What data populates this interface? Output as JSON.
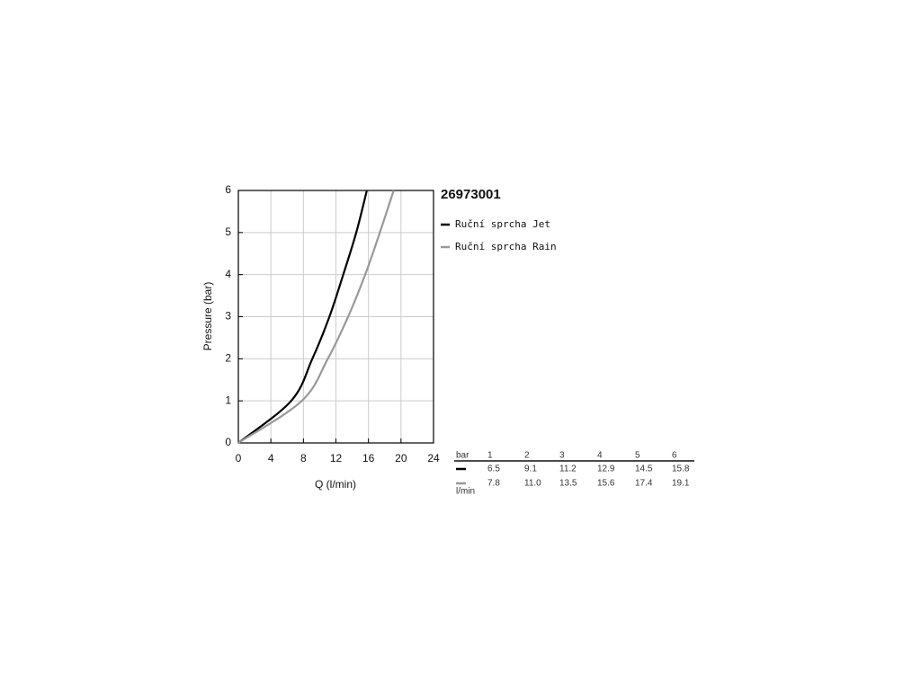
{
  "chart_data": {
    "type": "line",
    "title": "26973001",
    "xlabel": "Q (l/min)",
    "ylabel": "Pressure (bar)",
    "xlim": [
      0,
      24
    ],
    "xticks": [
      0,
      4,
      8,
      12,
      16,
      20,
      24
    ],
    "ylim": [
      0,
      6
    ],
    "yticks": [
      0,
      1,
      2,
      3,
      4,
      5,
      6
    ],
    "grid": true,
    "series": [
      {
        "name": "Ruční sprcha Jet",
        "color": "#000000",
        "x": [
          0,
          6.5,
          9.1,
          11.2,
          12.9,
          14.5,
          15.8
        ],
        "values": [
          0,
          1,
          2,
          3,
          4,
          5,
          6
        ]
      },
      {
        "name": "Ruční sprcha Rain",
        "color": "#999999",
        "x": [
          0,
          7.8,
          11.0,
          13.5,
          15.6,
          17.4,
          19.1
        ],
        "values": [
          0,
          1,
          2,
          3,
          4,
          5,
          6
        ]
      }
    ]
  },
  "table": {
    "header": [
      "bar",
      "1",
      "2",
      "3",
      "4",
      "5",
      "6"
    ],
    "unit": "l/min",
    "rows": [
      [
        "6.5",
        "9.1",
        "11.2",
        "12.9",
        "14.5",
        "15.8"
      ],
      [
        "7.8",
        "11.0",
        "13.5",
        "15.6",
        "17.4",
        "19.1"
      ]
    ]
  }
}
